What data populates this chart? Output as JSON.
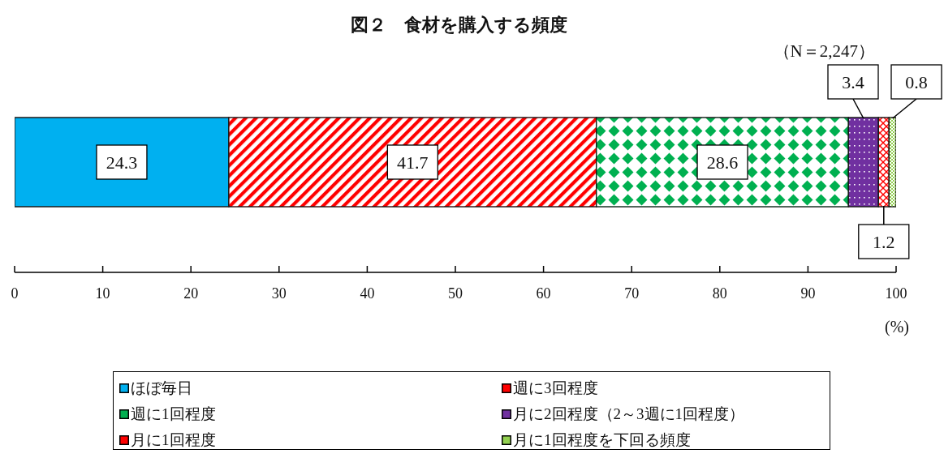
{
  "chart_data": {
    "type": "bar",
    "title": "図２　食材を購入する頻度",
    "subtitle": "（N＝2,247）",
    "xlabel": "(%)",
    "orientation": "horizontal",
    "stacked": true,
    "categories": [
      null
    ],
    "series": [
      {
        "name": "ほぼ毎日",
        "color": "#00b0f0",
        "values": [
          24.3
        ]
      },
      {
        "name": "週に3回程度",
        "color": "#ff0000",
        "values": [
          41.7
        ]
      },
      {
        "name": "週に1回程度",
        "color": "#00b050",
        "values": [
          28.6
        ]
      },
      {
        "name": "月に2回程度（2～3週に1回程度）",
        "color": "#7030a0",
        "values": [
          3.4
        ]
      },
      {
        "name": "月に1回程度",
        "color": "#ff0000",
        "values": [
          1.2
        ]
      },
      {
        "name": "月に1回程度を下回る頻度",
        "color": "#92d050",
        "values": [
          0.8
        ]
      }
    ],
    "xlim": [
      0,
      100
    ],
    "xticks": [
      0,
      10,
      20,
      30,
      40,
      50,
      60,
      70,
      80,
      90,
      100
    ],
    "data_labels": true,
    "legend": "bottom"
  }
}
